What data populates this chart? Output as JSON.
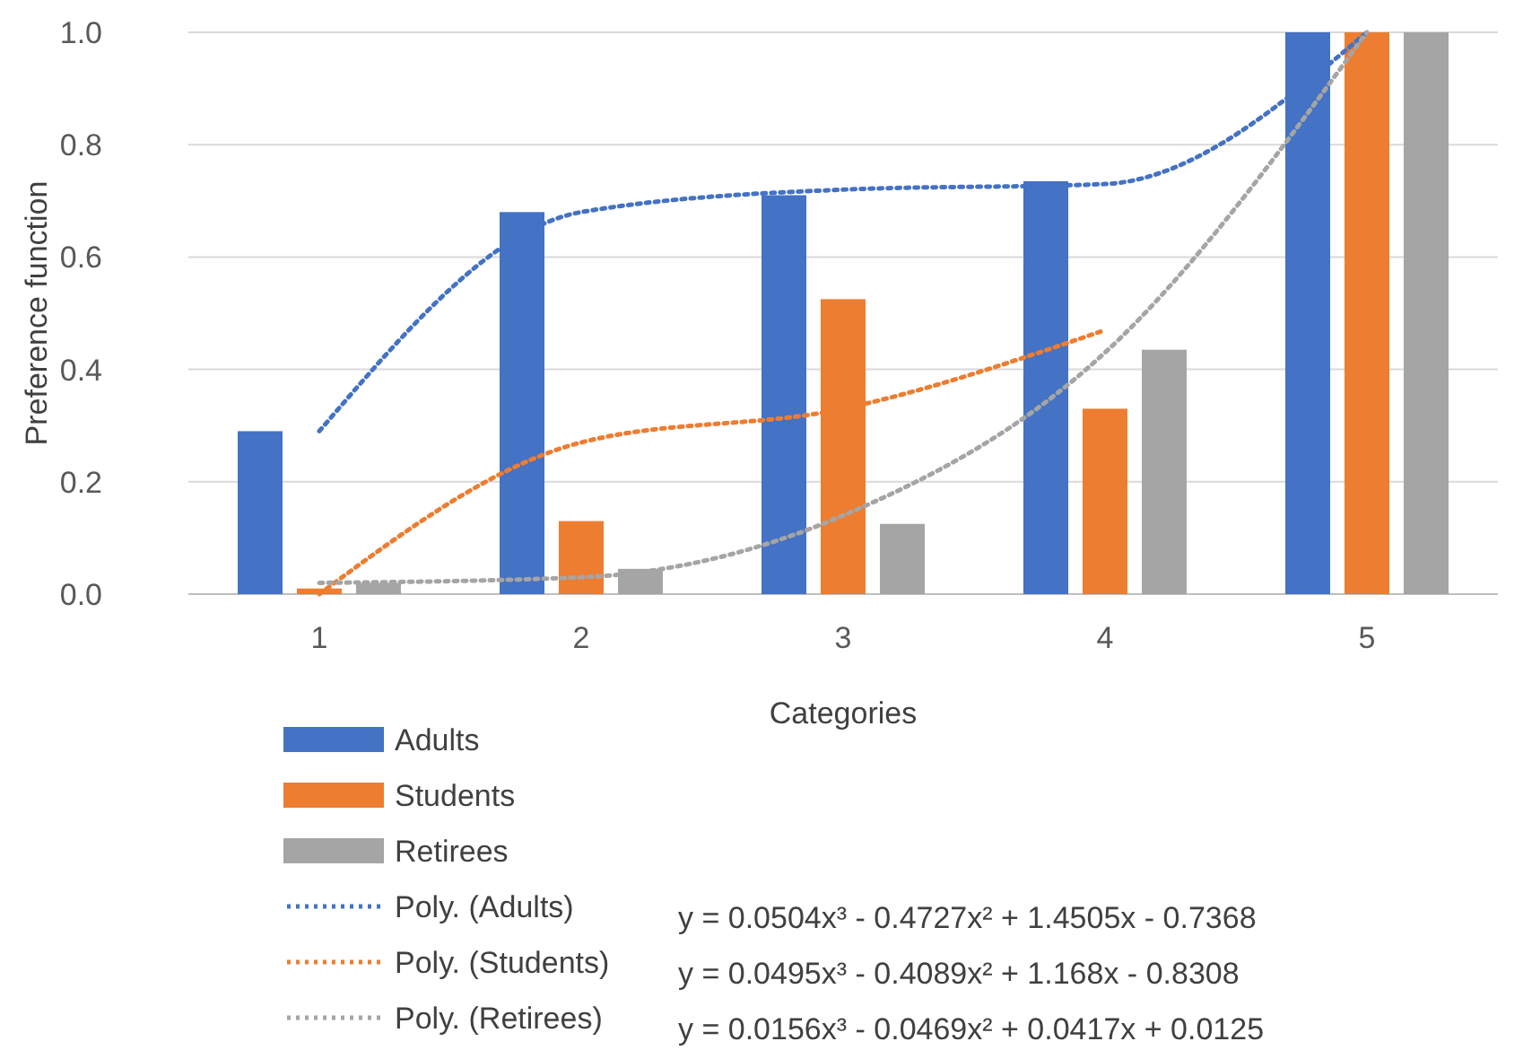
{
  "chart_data": {
    "type": "bar",
    "xlabel": "Categories",
    "ylabel": "Preference function",
    "categories": [
      "1",
      "2",
      "3",
      "4",
      "5"
    ],
    "series": [
      {
        "name": "Adults",
        "color": "#4472c4",
        "values": [
          0.29,
          0.68,
          0.71,
          0.735,
          1.0
        ]
      },
      {
        "name": "Students",
        "color": "#ed7d31",
        "values": [
          0.01,
          0.13,
          0.525,
          0.33,
          1.0
        ]
      },
      {
        "name": "Retirees",
        "color": "#a5a5a5",
        "values": [
          0.02,
          0.045,
          0.125,
          0.435,
          1.0
        ]
      },
      {
        "name": "Poly. (Adults)",
        "type": "line",
        "line_style": "dotted",
        "color": "#4472c4",
        "values": [
          0.29,
          0.68,
          0.72,
          0.73,
          1.0
        ]
      },
      {
        "name": "Poly. (Students)",
        "type": "line",
        "line_style": "dotted",
        "color": "#ed7d31",
        "values": [
          0.0,
          0.27,
          0.33,
          0.47,
          null
        ]
      },
      {
        "name": "Poly. (Retirees)",
        "type": "line",
        "line_style": "dotted",
        "color": "#a5a5a5",
        "values": [
          0.02,
          0.03,
          0.14,
          0.43,
          1.0
        ]
      }
    ],
    "annotations": [
      "y = 0.0504x³ - 0.4727x² + 1.4505x - 0.7368",
      "y = 0.0495x³ - 0.4089x² + 1.168x - 0.8308",
      "y = 0.0156x³ - 0.0469x² + 0.0417x + 0.0125"
    ],
    "ylim": [
      0.0,
      1.0
    ],
    "yticks": [
      {
        "value": 0,
        "label": "0.0"
      },
      0.2,
      0.4,
      0.6,
      0.8,
      {
        "value": 1,
        "label": "1.0"
      }
    ],
    "grid": "y",
    "legend": "bottom"
  }
}
